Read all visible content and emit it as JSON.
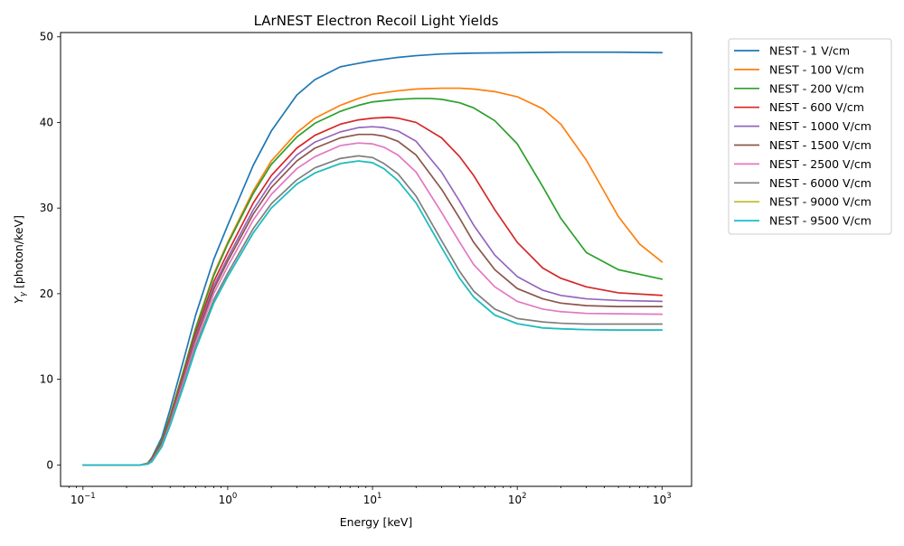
{
  "chart_data": {
    "type": "line",
    "title": "LArNEST Electron Recoil Light Yields",
    "xlabel": "Energy [keV]",
    "ylabel_main": "Y",
    "ylabel_sub": "γ",
    "ylabel_rest": " [photon/keV]",
    "xscale": "log",
    "xlim": [
      0.07,
      1600
    ],
    "ylim": [
      -2.5,
      50.5
    ],
    "x_ticks": [
      {
        "value": 0.1,
        "base": "10",
        "exp": "−1"
      },
      {
        "value": 1,
        "base": "10",
        "exp": "0"
      },
      {
        "value": 10,
        "base": "10",
        "exp": "1"
      },
      {
        "value": 100,
        "base": "10",
        "exp": "2"
      },
      {
        "value": 1000,
        "base": "10",
        "exp": "3"
      }
    ],
    "y_ticks": [
      {
        "value": 0,
        "label": "0"
      },
      {
        "value": 10,
        "label": "10"
      },
      {
        "value": 20,
        "label": "20"
      },
      {
        "value": 30,
        "label": "30"
      },
      {
        "value": 40,
        "label": "40"
      },
      {
        "value": 50,
        "label": "50"
      }
    ],
    "grid": false,
    "legend_position": "outside-top-right",
    "series": [
      {
        "name": "NEST - 1 V/cm",
        "color": "#1f77b4",
        "x": [
          0.1,
          0.25,
          0.28,
          0.3,
          0.35,
          0.4,
          0.5,
          0.6,
          0.8,
          1,
          1.5,
          2,
          3,
          4,
          6,
          8,
          10,
          15,
          20,
          30,
          50,
          100,
          200,
          500,
          1000
        ],
        "y": [
          0,
          0,
          0.2,
          0.9,
          3.2,
          6.5,
          12.5,
          17.5,
          24,
          28,
          35,
          39,
          43.2,
          45,
          46.5,
          46.9,
          47.2,
          47.6,
          47.8,
          48.0,
          48.1,
          48.15,
          48.2,
          48.2,
          48.15
        ]
      },
      {
        "name": "NEST - 100 V/cm",
        "color": "#ff7f0e",
        "x": [
          0.1,
          0.25,
          0.28,
          0.3,
          0.35,
          0.4,
          0.5,
          0.6,
          0.8,
          1,
          1.5,
          2,
          3,
          4,
          6,
          8,
          10,
          15,
          20,
          30,
          40,
          50,
          70,
          100,
          150,
          200,
          300,
          500,
          700,
          1000
        ],
        "y": [
          0,
          0,
          0.2,
          0.8,
          2.8,
          5.8,
          11.3,
          16,
          22.3,
          26,
          32,
          35.5,
          38.8,
          40.5,
          42,
          42.8,
          43.3,
          43.7,
          43.9,
          44.0,
          44.0,
          43.9,
          43.6,
          43.0,
          41.6,
          39.8,
          35.6,
          29.0,
          25.8,
          23.7
        ]
      },
      {
        "name": "NEST - 200 V/cm",
        "color": "#2ca02c",
        "x": [
          0.1,
          0.25,
          0.28,
          0.3,
          0.35,
          0.4,
          0.5,
          0.6,
          0.8,
          1,
          1.5,
          2,
          3,
          4,
          6,
          8,
          10,
          15,
          20,
          25,
          30,
          40,
          50,
          70,
          100,
          150,
          200,
          300,
          500,
          1000
        ],
        "y": [
          0,
          0,
          0.2,
          0.8,
          2.8,
          5.7,
          11.2,
          15.9,
          22.1,
          25.8,
          31.7,
          35.1,
          38.3,
          39.9,
          41.3,
          42,
          42.4,
          42.7,
          42.8,
          42.8,
          42.7,
          42.3,
          41.7,
          40.2,
          37.5,
          32.5,
          28.8,
          24.8,
          22.8,
          21.7
        ]
      },
      {
        "name": "NEST - 600 V/cm",
        "color": "#d62728",
        "x": [
          0.1,
          0.25,
          0.28,
          0.3,
          0.35,
          0.4,
          0.5,
          0.6,
          0.8,
          1,
          1.5,
          2,
          3,
          4,
          6,
          8,
          10,
          13,
          15,
          20,
          30,
          40,
          50,
          70,
          100,
          150,
          200,
          300,
          500,
          1000
        ],
        "y": [
          0,
          0,
          0.15,
          0.7,
          2.6,
          5.4,
          10.8,
          15.4,
          21.4,
          24.8,
          30.6,
          33.8,
          37,
          38.5,
          39.8,
          40.3,
          40.5,
          40.6,
          40.5,
          40.0,
          38.2,
          36.0,
          33.8,
          29.8,
          26.0,
          23.0,
          21.8,
          20.8,
          20.1,
          19.8
        ]
      },
      {
        "name": "NEST - 1000 V/cm",
        "color": "#9467bd",
        "x": [
          0.1,
          0.25,
          0.28,
          0.3,
          0.35,
          0.4,
          0.5,
          0.6,
          0.8,
          1,
          1.5,
          2,
          3,
          4,
          6,
          8,
          10,
          12,
          15,
          20,
          30,
          40,
          50,
          70,
          100,
          150,
          200,
          300,
          500,
          1000
        ],
        "y": [
          0,
          0,
          0.15,
          0.6,
          2.5,
          5.2,
          10.5,
          15,
          20.9,
          24.2,
          29.8,
          33,
          36.2,
          37.7,
          38.9,
          39.4,
          39.5,
          39.4,
          39.0,
          37.8,
          34.2,
          30.8,
          28.0,
          24.5,
          22.0,
          20.4,
          19.8,
          19.4,
          19.2,
          19.1
        ]
      },
      {
        "name": "NEST - 1500 V/cm",
        "color": "#8c564b",
        "x": [
          0.1,
          0.25,
          0.28,
          0.3,
          0.35,
          0.4,
          0.5,
          0.6,
          0.8,
          1,
          1.5,
          2,
          3,
          4,
          6,
          8,
          10,
          12,
          15,
          20,
          30,
          40,
          50,
          70,
          100,
          150,
          200,
          300,
          500,
          1000
        ],
        "y": [
          0,
          0,
          0.15,
          0.6,
          2.5,
          5.1,
          10.3,
          14.7,
          20.5,
          23.8,
          29.3,
          32.4,
          35.5,
          37,
          38.2,
          38.6,
          38.6,
          38.4,
          37.8,
          36.2,
          32.2,
          28.8,
          26.0,
          22.8,
          20.6,
          19.4,
          18.9,
          18.6,
          18.5,
          18.5
        ]
      },
      {
        "name": "NEST - 2500 V/cm",
        "color": "#e377c2",
        "x": [
          0.1,
          0.25,
          0.28,
          0.3,
          0.35,
          0.4,
          0.5,
          0.6,
          0.8,
          1,
          1.5,
          2,
          3,
          4,
          6,
          8,
          10,
          12,
          15,
          20,
          30,
          40,
          50,
          70,
          100,
          150,
          200,
          300,
          500,
          1000
        ],
        "y": [
          0,
          0,
          0.1,
          0.5,
          2.3,
          4.9,
          10.0,
          14.3,
          20.0,
          23.2,
          28.6,
          31.6,
          34.6,
          36,
          37.3,
          37.6,
          37.5,
          37.1,
          36.2,
          34.2,
          29.5,
          26.0,
          23.4,
          20.8,
          19.1,
          18.2,
          17.9,
          17.7,
          17.65,
          17.6
        ]
      },
      {
        "name": "NEST - 6000 V/cm",
        "color": "#7f7f7f",
        "x": [
          0.1,
          0.25,
          0.28,
          0.3,
          0.35,
          0.4,
          0.5,
          0.6,
          0.8,
          1,
          1.5,
          2,
          3,
          4,
          6,
          8,
          10,
          12,
          15,
          20,
          30,
          40,
          50,
          70,
          100,
          150,
          200,
          300,
          500,
          1000
        ],
        "y": [
          0,
          0,
          0.1,
          0.4,
          2.2,
          4.7,
          9.6,
          13.8,
          19.3,
          22.4,
          27.6,
          30.5,
          33.3,
          34.7,
          35.8,
          36.1,
          35.9,
          35.2,
          34.0,
          31.4,
          26.2,
          22.6,
          20.3,
          18.2,
          17.1,
          16.7,
          16.55,
          16.45,
          16.45,
          16.45
        ]
      },
      {
        "name": "NEST - 9000 V/cm",
        "color": "#bcbd22",
        "x": [
          0.1,
          0.25,
          0.28,
          0.3,
          0.35,
          0.4,
          0.5,
          0.6,
          0.8,
          1,
          1.5,
          2,
          3,
          4,
          6,
          8,
          10,
          12,
          15,
          20,
          30,
          40,
          50,
          70,
          100,
          150,
          200,
          300,
          500,
          1000
        ],
        "y": [
          0,
          0,
          0.1,
          0.4,
          2.1,
          4.6,
          9.4,
          13.5,
          18.9,
          22.0,
          27.1,
          30.0,
          32.8,
          34.1,
          35.2,
          35.5,
          35.3,
          34.6,
          33.2,
          30.6,
          25.4,
          21.8,
          19.6,
          17.5,
          16.5,
          16.0,
          15.9,
          15.8,
          15.75,
          15.75
        ]
      },
      {
        "name": "NEST - 9500 V/cm",
        "color": "#17becf",
        "x": [
          0.1,
          0.25,
          0.28,
          0.3,
          0.35,
          0.4,
          0.5,
          0.6,
          0.8,
          1,
          1.5,
          2,
          3,
          4,
          6,
          8,
          10,
          12,
          15,
          20,
          30,
          40,
          50,
          70,
          100,
          150,
          200,
          300,
          500,
          1000
        ],
        "y": [
          0,
          0,
          0.1,
          0.4,
          2.1,
          4.6,
          9.4,
          13.5,
          18.9,
          22.0,
          27.1,
          30.0,
          32.8,
          34.1,
          35.2,
          35.5,
          35.3,
          34.6,
          33.2,
          30.6,
          25.4,
          21.8,
          19.6,
          17.5,
          16.5,
          16.0,
          15.9,
          15.8,
          15.75,
          15.75
        ]
      }
    ]
  }
}
